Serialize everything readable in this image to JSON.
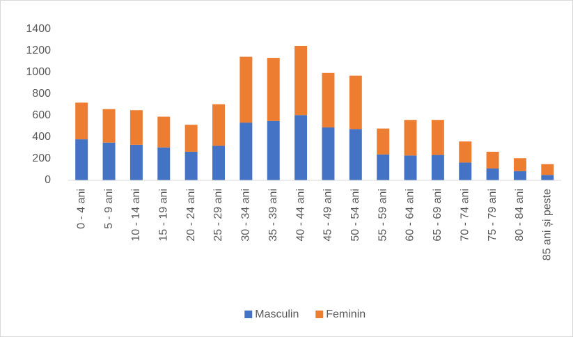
{
  "chart_data": {
    "type": "stacked_bar",
    "categories": [
      "0 - 4 ani",
      "5 - 9 ani",
      "10 - 14 ani",
      "15 - 19 ani",
      "20 - 24 ani",
      "25 - 29 ani",
      "30 - 34 ani",
      "35 - 39 ani",
      "40 - 44 ani",
      "45 - 49 ani",
      "50 - 54 ani",
      "55 - 59 ani",
      "60 - 64 ani",
      "65 - 69 ani",
      "70 - 74 ani",
      "75 - 79 ani",
      "80 - 84 ani",
      "85 ani și peste"
    ],
    "series": [
      {
        "name": "Masculin",
        "color": "#4472c4",
        "values": [
          380,
          350,
          330,
          305,
          265,
          320,
          535,
          550,
          605,
          490,
          475,
          240,
          230,
          235,
          165,
          110,
          85,
          50
        ]
      },
      {
        "name": "Feminin",
        "color": "#ed7d31",
        "values": [
          340,
          310,
          320,
          285,
          250,
          385,
          610,
          585,
          640,
          505,
          495,
          240,
          330,
          325,
          195,
          155,
          120,
          100
        ]
      }
    ],
    "ylim": [
      0,
      1400
    ],
    "yticks": [
      0,
      200,
      400,
      600,
      800,
      1000,
      1200,
      1400
    ],
    "grid": false,
    "legend": "bottom"
  }
}
